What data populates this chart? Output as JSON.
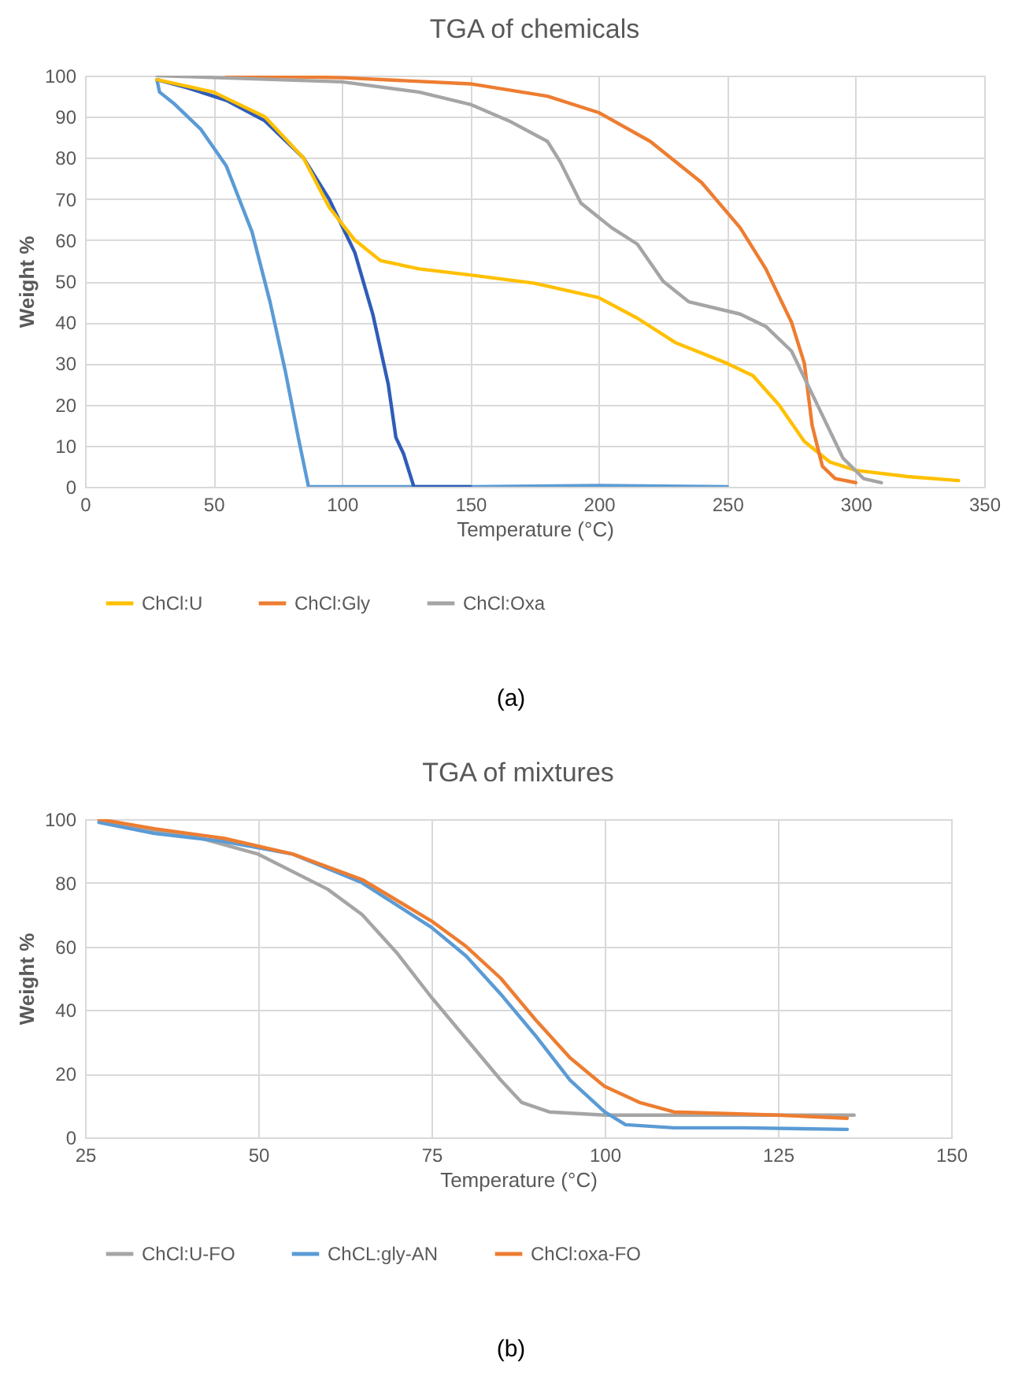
{
  "chart_data": [
    {
      "type": "line",
      "title": "TGA of chemicals",
      "xlabel": "Temperature (°C)",
      "ylabel": "Weight %",
      "xlim": [
        0,
        350
      ],
      "xticks": [
        0,
        50,
        100,
        150,
        200,
        250,
        300,
        350
      ],
      "ylim": [
        0,
        100
      ],
      "yticks": [
        0,
        10,
        20,
        30,
        40,
        50,
        60,
        70,
        80,
        90,
        100
      ],
      "grid": true,
      "legend": "bottom",
      "annotations": [
        "(a)"
      ],
      "series": [
        {
          "color": "#5b9bd5",
          "x": [
            28,
            29,
            35,
            45,
            55,
            65,
            72,
            78,
            83,
            87,
            100,
            150,
            200,
            250
          ],
          "values": [
            99,
            96,
            93,
            87,
            78,
            62,
            45,
            28,
            12,
            0,
            0,
            0,
            0.3,
            0
          ]
        },
        {
          "color": "#2f5cb8",
          "x": [
            28,
            40,
            55,
            70,
            85,
            95,
            105,
            112,
            118,
            121,
            124,
            127,
            128,
            150
          ],
          "values": [
            99,
            97,
            94,
            89,
            80,
            70,
            57,
            42,
            25,
            12,
            8,
            2,
            0,
            0
          ]
        },
        {
          "name": "ChCl:U",
          "color": "#ffc000",
          "x": [
            28,
            50,
            70,
            85,
            95,
            105,
            115,
            130,
            150,
            175,
            200,
            215,
            230,
            250,
            260,
            270,
            280,
            290,
            300,
            320,
            340
          ],
          "values": [
            99,
            96,
            90,
            80,
            68,
            60,
            55,
            53,
            51.5,
            49.5,
            46,
            41,
            35,
            30,
            27,
            20,
            11,
            6,
            4,
            2.5,
            1.5
          ]
        },
        {
          "name": "ChCl:Gly",
          "color": "#ed7d31",
          "x": [
            55,
            100,
            150,
            180,
            200,
            220,
            240,
            255,
            265,
            275,
            280,
            283,
            287,
            292,
            300
          ],
          "values": [
            100,
            99.5,
            98,
            95,
            91,
            84,
            74,
            63,
            53,
            40,
            30,
            15,
            5,
            2,
            1
          ]
        },
        {
          "name": "ChCl:Oxa",
          "color": "#a5a5a5",
          "x": [
            28,
            100,
            130,
            150,
            165,
            180,
            185,
            193,
            205,
            215,
            225,
            235,
            255,
            265,
            275,
            285,
            295,
            303,
            310
          ],
          "values": [
            100,
            98.5,
            96,
            93,
            89,
            84,
            79,
            69,
            63,
            59,
            50,
            45,
            42,
            39,
            33,
            20,
            7,
            2,
            1
          ]
        }
      ]
    },
    {
      "type": "line",
      "title": "TGA of mixtures",
      "xlabel": "Temperature (°C)",
      "ylabel": "Weight %",
      "xlim": [
        25,
        150
      ],
      "xticks": [
        25,
        50,
        75,
        100,
        125,
        150
      ],
      "ylim": [
        0,
        100
      ],
      "yticks": [
        0,
        20,
        40,
        60,
        80,
        100
      ],
      "grid": true,
      "legend": "bottom",
      "annotations": [
        "(b)"
      ],
      "series": [
        {
          "name": "ChCl:U-FO",
          "color": "#a5a5a5",
          "x": [
            27,
            30,
            40,
            50,
            60,
            65,
            70,
            75,
            80,
            85,
            88,
            92,
            100,
            120,
            136
          ],
          "values": [
            100,
            98,
            95,
            89,
            78,
            70,
            58,
            44,
            31,
            18,
            11,
            8,
            7,
            7,
            7
          ]
        },
        {
          "name": "ChCL:gly-AN",
          "color": "#5b9bd5",
          "x": [
            27,
            35,
            45,
            55,
            65,
            75,
            80,
            85,
            90,
            95,
            100,
            103,
            110,
            120,
            135
          ],
          "values": [
            99,
            95.5,
            93,
            89,
            80,
            66,
            57,
            45,
            32,
            18,
            8,
            4,
            3,
            3,
            2.5
          ]
        },
        {
          "name": "ChCl:oxa-FO",
          "color": "#ed7d31",
          "x": [
            27,
            35,
            45,
            55,
            65,
            75,
            80,
            85,
            90,
            95,
            100,
            105,
            110,
            125,
            135
          ],
          "values": [
            100,
            97,
            94,
            89,
            81,
            68,
            60,
            50,
            37,
            25,
            16,
            11,
            8,
            7,
            6
          ]
        }
      ]
    }
  ]
}
